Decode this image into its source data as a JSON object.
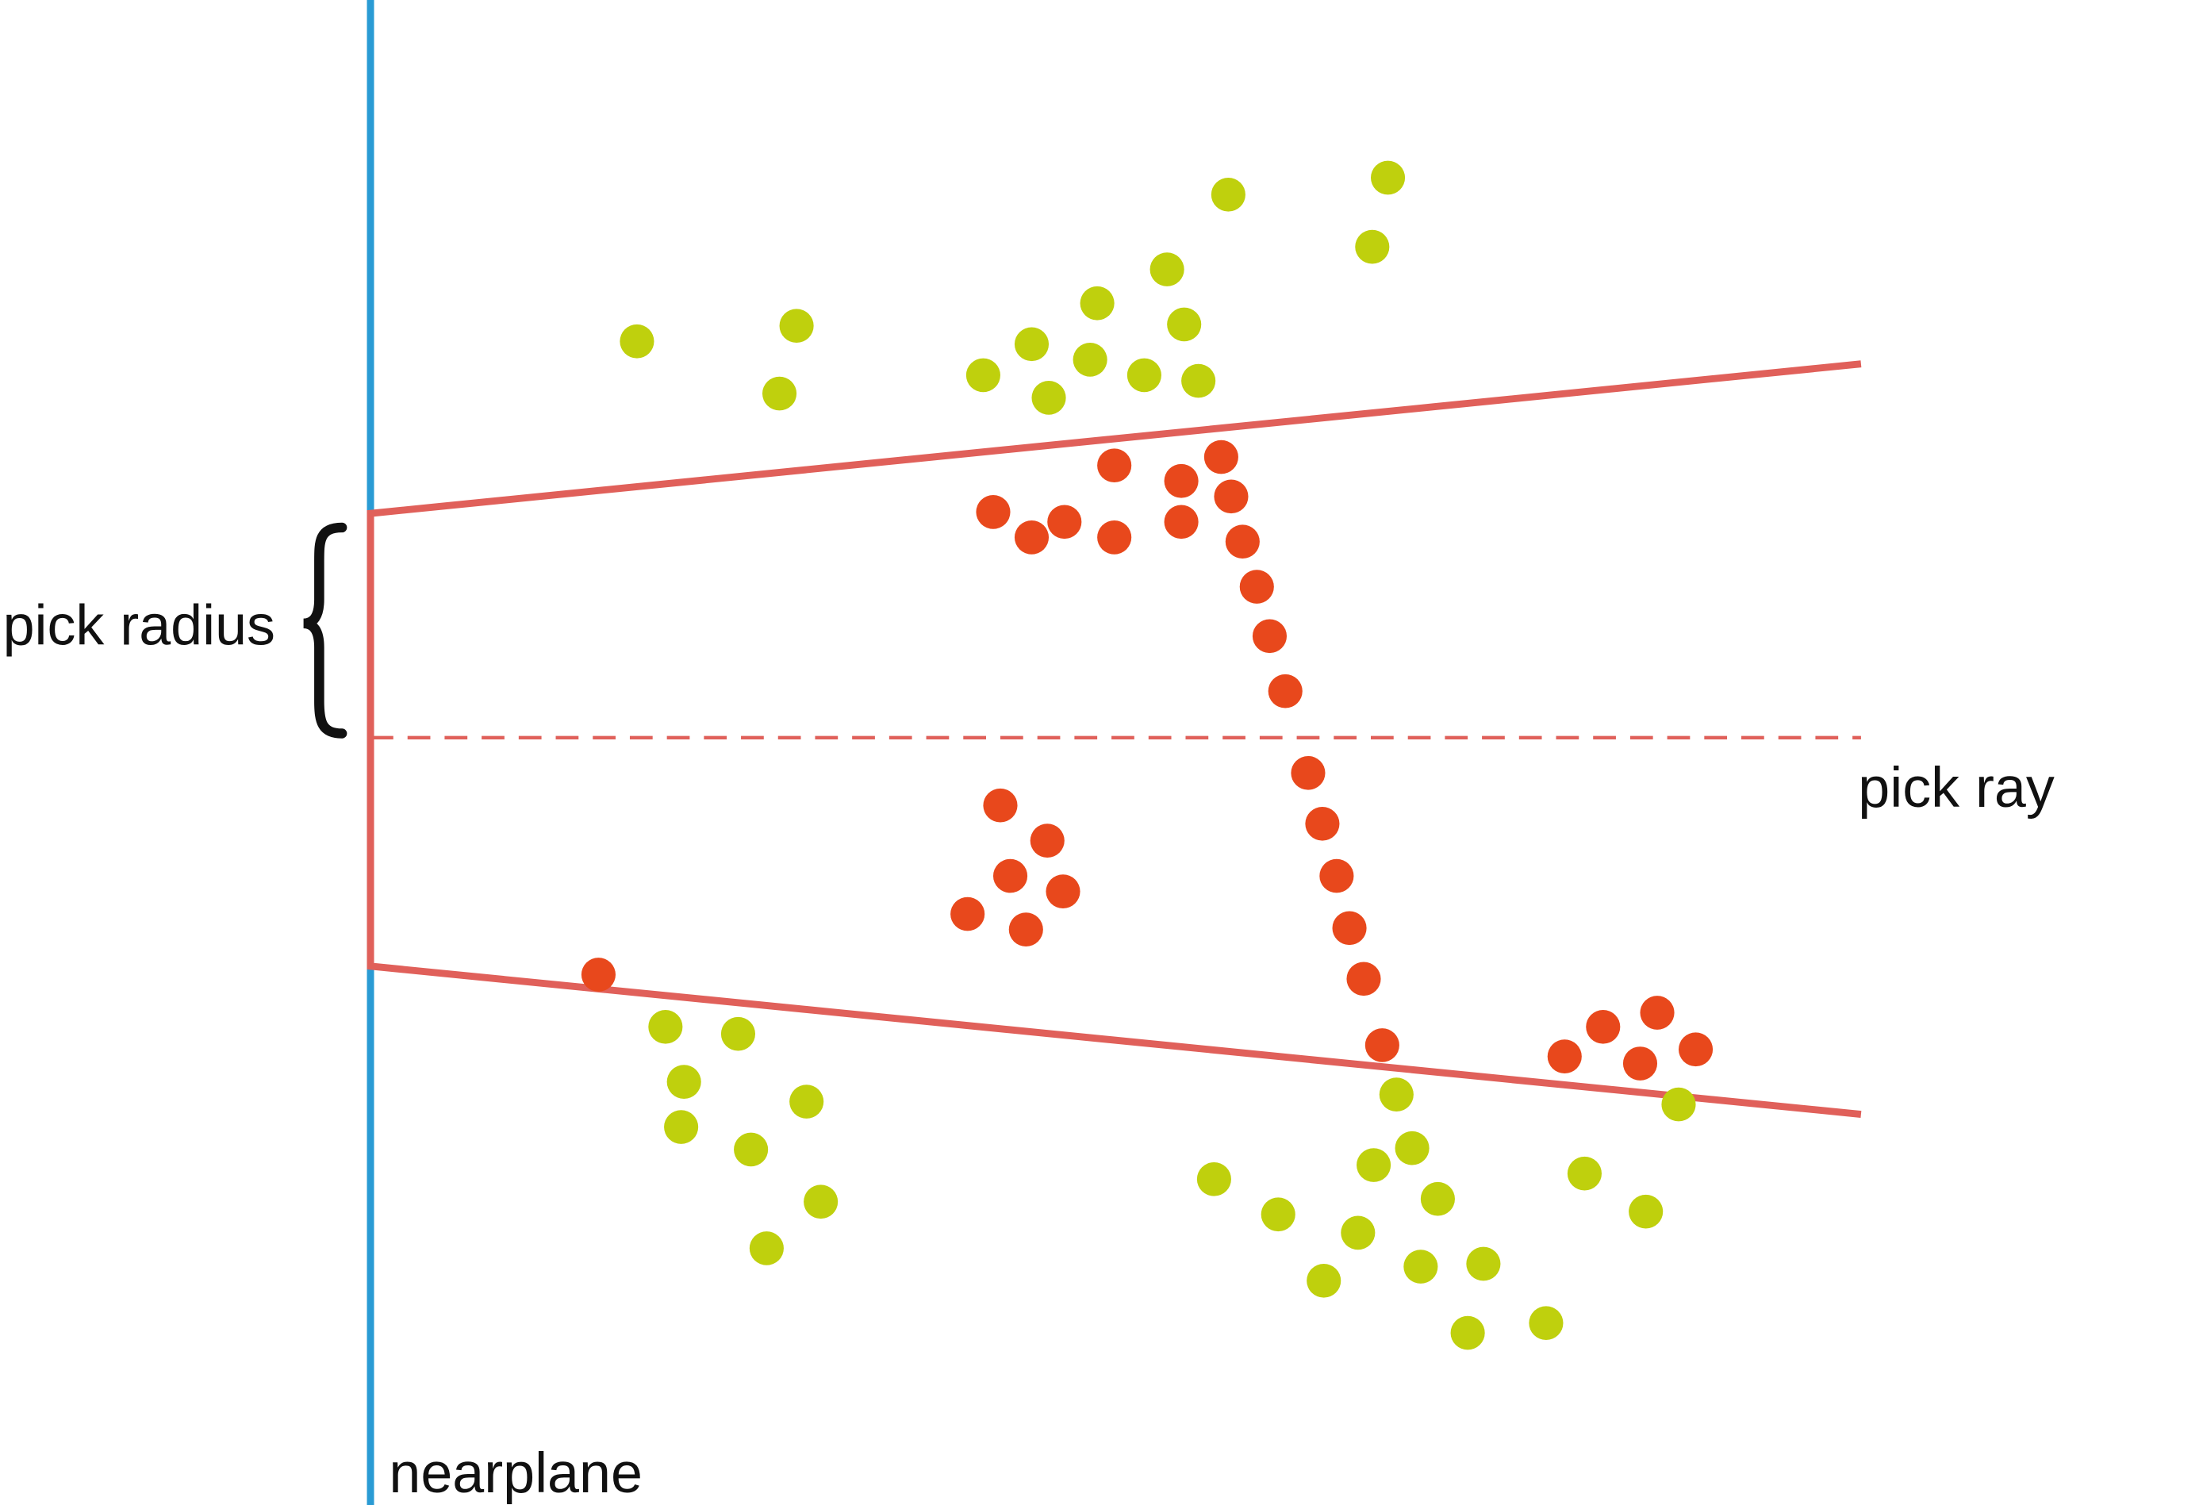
{
  "labels": {
    "pick_radius": "pick radius",
    "pick_ray": "pick ray",
    "nearplane": "nearplane"
  },
  "colors": {
    "nearplane": "#2a9bd4",
    "frustum": "#e0605a",
    "selected_point": "#e8481c",
    "unselected_point": "#bfd00d",
    "brace": "#111111"
  }
}
